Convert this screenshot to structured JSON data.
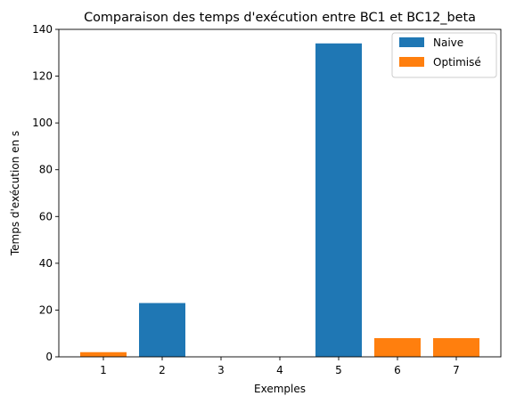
{
  "chart_data": {
    "type": "bar",
    "title": "Comparaison des temps d'exécution entre BC1 et BC12_beta",
    "xlabel": "Exemples",
    "ylabel": "Temps d'exécution en s",
    "categories": [
      "1",
      "2",
      "3",
      "4",
      "5",
      "6",
      "7"
    ],
    "ylim": [
      0,
      140
    ],
    "yticks": [
      0,
      20,
      40,
      60,
      80,
      100,
      120,
      140
    ],
    "grid": false,
    "legend_position": "top-right",
    "series": [
      {
        "name": "Naive",
        "color": "#1f77b4",
        "values": [
          null,
          23,
          null,
          null,
          134,
          null,
          null
        ]
      },
      {
        "name": "Optimisé",
        "color": "#ff7f0e",
        "values": [
          2,
          null,
          null,
          null,
          null,
          8,
          8
        ]
      }
    ]
  }
}
